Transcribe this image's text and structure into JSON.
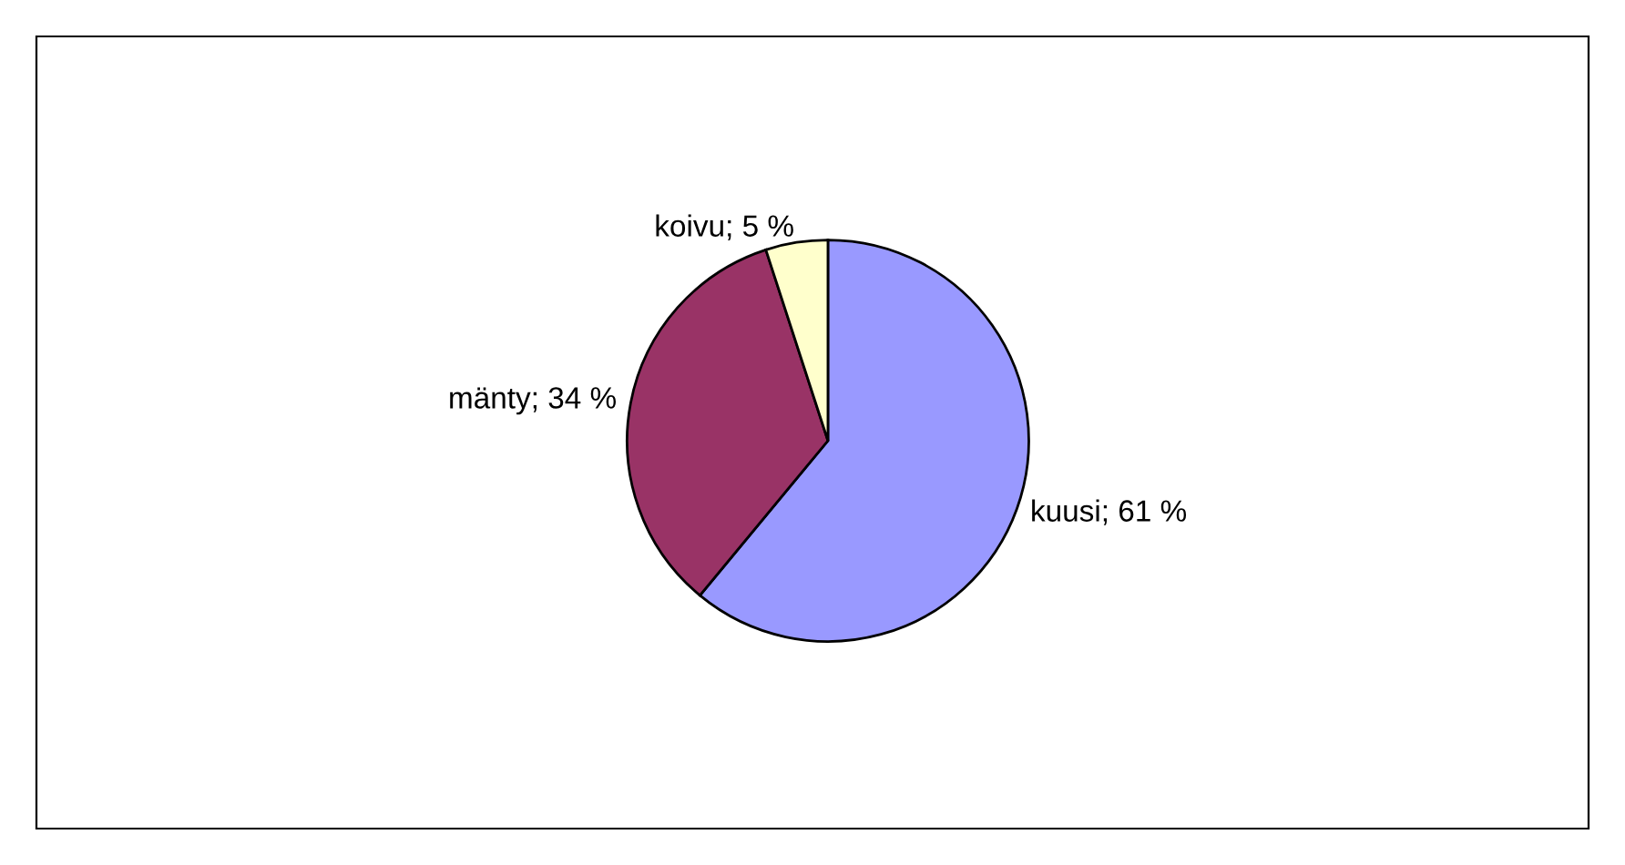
{
  "chart_data": {
    "type": "pie",
    "categories": [
      "kuusi",
      "mänty",
      "koivu"
    ],
    "values": [
      61,
      34,
      5
    ],
    "colors": [
      "#9999ff",
      "#993366",
      "#ffffcc"
    ],
    "value_labels": [
      "61 %",
      "34 %",
      "5 %"
    ],
    "legend": false
  }
}
